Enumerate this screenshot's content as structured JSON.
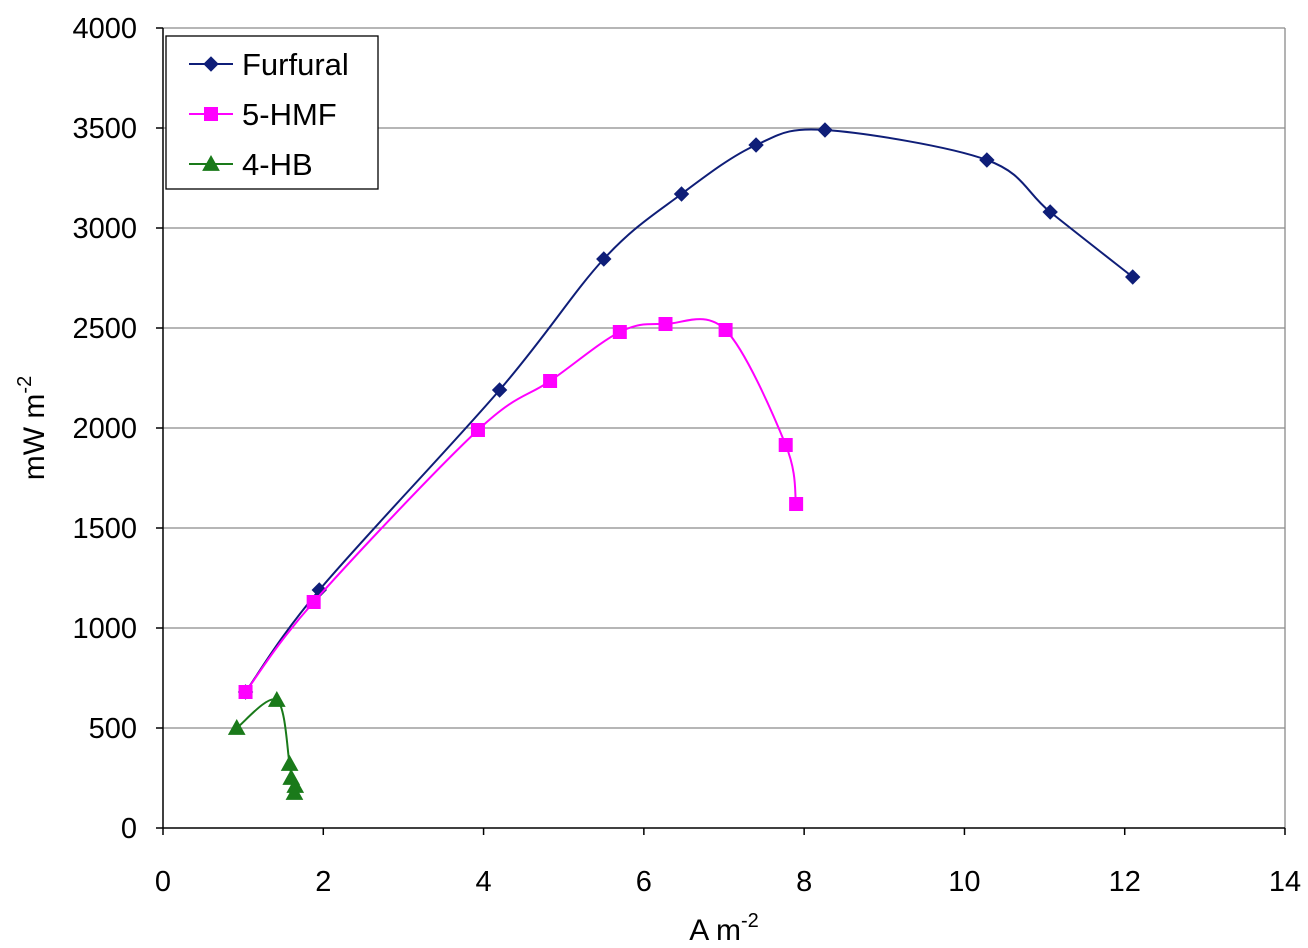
{
  "chart_data": {
    "type": "scatter",
    "title": "",
    "xlabel": "A m",
    "xlabel_sup": "-2",
    "ylabel": "mW m",
    "ylabel_sup": "-2",
    "xlim": [
      0,
      14
    ],
    "ylim": [
      0,
      4000
    ],
    "x_ticks": [
      0,
      2,
      4,
      6,
      8,
      10,
      12,
      14
    ],
    "y_ticks": [
      0,
      500,
      1000,
      1500,
      2000,
      2500,
      3000,
      3500,
      4000
    ],
    "x_tick_labels": [
      "0",
      "2",
      "4",
      "6",
      "8",
      "10",
      "12",
      "14"
    ],
    "y_tick_labels": [
      "0",
      "500",
      "1000",
      "1500",
      "2000",
      "2500",
      "3000",
      "3500",
      "4000"
    ],
    "grid": "horizontal",
    "legend_position": "top-left",
    "series": [
      {
        "name": "Furfural",
        "color": "#0f1e78",
        "marker": "diamond",
        "x": [
          1.03,
          1.95,
          4.2,
          5.5,
          6.47,
          7.4,
          8.26,
          10.28,
          11.07,
          12.1
        ],
        "y": [
          680,
          1190,
          2190,
          2845,
          3170,
          3415,
          3490,
          3340,
          3080,
          2755
        ]
      },
      {
        "name": "5-HMF",
        "color": "#ff00ff",
        "marker": "square",
        "x": [
          1.03,
          1.88,
          3.93,
          4.83,
          5.7,
          6.27,
          7.02,
          7.77,
          7.9
        ],
        "y": [
          680,
          1130,
          1990,
          2235,
          2480,
          2520,
          2490,
          1915,
          1620
        ]
      },
      {
        "name": "4-HB",
        "color": "#1a7a1a",
        "marker": "triangle",
        "x": [
          0.92,
          1.42,
          1.58,
          1.6,
          1.65,
          1.64
        ],
        "y": [
          500,
          640,
          320,
          250,
          210,
          175
        ]
      }
    ]
  }
}
